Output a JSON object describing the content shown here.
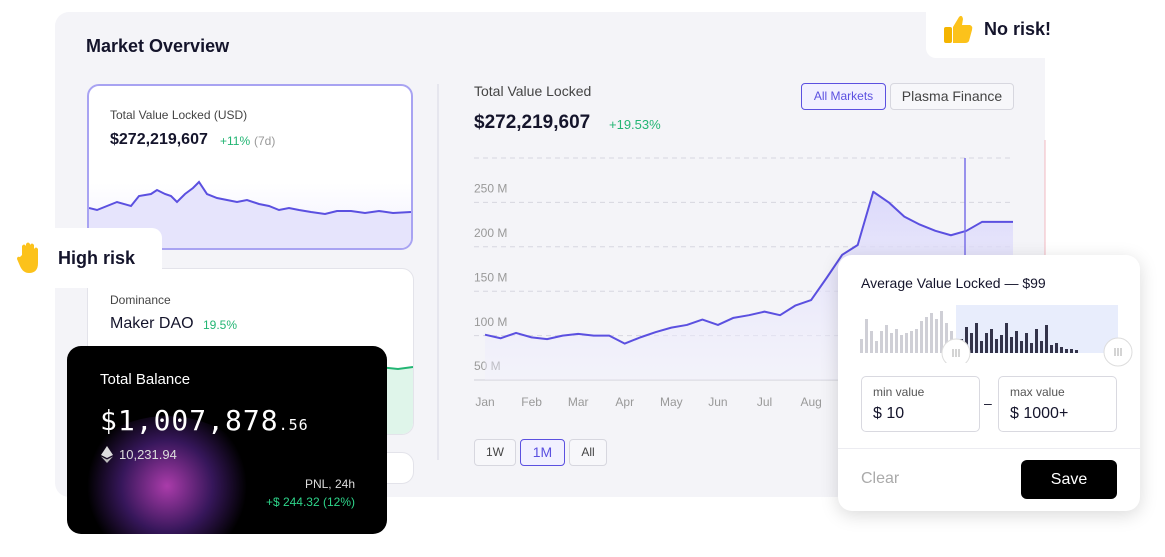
{
  "header": {
    "title": "Market Overview"
  },
  "badges": {
    "no_risk": "No risk!",
    "high_risk": "High risk"
  },
  "tvl_card": {
    "label": "Total Value Locked (USD)",
    "value": "$272,219,607",
    "change": "+11%",
    "period": "(7d)"
  },
  "dominance_card": {
    "label": "Dominance",
    "name": "Maker DAO",
    "value": "19.5%"
  },
  "balance_card": {
    "label": "Total Balance",
    "amount": "$1,007,878",
    "cents": ".56",
    "eth": "10,231.94",
    "pnl_label": "PNL, 24h",
    "pnl_value": "+$ 244.32 (12%)"
  },
  "main": {
    "title": "Total Value Locked",
    "value": "$272,219,607",
    "change": "+19.53%",
    "tabs": [
      "All Markets",
      "Plasma Finance"
    ],
    "ranges": [
      "1W",
      "1M",
      "All"
    ]
  },
  "popup": {
    "title": "Average Value Locked — $99",
    "min_label": "min value",
    "min_value": "$ 10",
    "separator": "–",
    "max_label": "max value",
    "max_value": "$ 1000+",
    "clear": "Clear",
    "save": "Save"
  },
  "chart_data": {
    "type": "line",
    "categories": [
      "Jan",
      null,
      null,
      "Feb",
      null,
      null,
      "Mar",
      null,
      null,
      "Apr",
      null,
      null,
      "May",
      null,
      null,
      "Jun",
      null,
      null,
      "Jul",
      null,
      null,
      "Aug",
      null,
      null,
      null,
      null,
      null,
      null,
      null,
      null,
      null,
      null,
      null,
      null,
      null
    ],
    "series": [
      {
        "name": "Total Value Locked",
        "color": "#5b50e0",
        "values": [
          101,
          97,
          103,
          98,
          96,
          100,
          102,
          100,
          100,
          91,
          98,
          104,
          109,
          112,
          118,
          112,
          120,
          123,
          127,
          123,
          134,
          140,
          165,
          191,
          202,
          262,
          250,
          234,
          225,
          218,
          213,
          218,
          228,
          228,
          228
        ]
      }
    ],
    "ylim": [
      50,
      300
    ],
    "yticks": [
      {
        "value": 50,
        "label": "50 M"
      },
      {
        "value": 100,
        "label": "100 M"
      },
      {
        "value": 150,
        "label": "150 M"
      },
      {
        "value": 200,
        "label": "200 M"
      },
      {
        "value": 250,
        "label": "250 M"
      }
    ],
    "grid": true
  }
}
